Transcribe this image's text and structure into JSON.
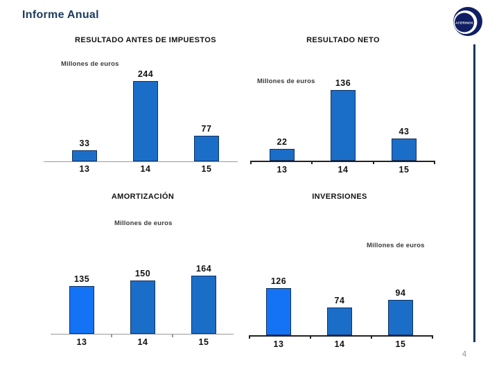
{
  "page": {
    "title": "Informe Anual",
    "page_number": "4"
  },
  "logo": {
    "text": "ACERINOX"
  },
  "colors": {
    "bar_fill": "#1b6ec8",
    "bar_highlight": "#1473f5",
    "bar_border": "#10305f",
    "title_text": "#1c3a5c",
    "accent_line": "#16355c"
  },
  "chart_data": [
    {
      "type": "bar",
      "title": "RESULTADO ANTES DE IMPUESTOS",
      "unit_label": "Millones de euros",
      "categories": [
        "13",
        "14",
        "15"
      ],
      "values": [
        33,
        244,
        77
      ],
      "bar_colors": [
        "#1b6ec8",
        "#1b6ec8",
        "#1b6ec8"
      ],
      "data_labels": true,
      "grid": false,
      "legend": false
    },
    {
      "type": "bar",
      "title": "RESULTADO NETO",
      "unit_label": "Millones de euros",
      "categories": [
        "13",
        "14",
        "15"
      ],
      "values": [
        22,
        136,
        43
      ],
      "bar_colors": [
        "#1b6ec8",
        "#1b6ec8",
        "#1b6ec8"
      ],
      "data_labels": true,
      "grid": false,
      "legend": false
    },
    {
      "type": "bar",
      "title": "AMORTIZACIÓN",
      "unit_label": "Millones de euros",
      "categories": [
        "13",
        "14",
        "15"
      ],
      "values": [
        135,
        150,
        164
      ],
      "bar_colors": [
        "#1473f5",
        "#1b6ec8",
        "#1b6ec8"
      ],
      "data_labels": true,
      "grid": false,
      "legend": false
    },
    {
      "type": "bar",
      "title": "INVERSIONES",
      "unit_label": "Millones de euros",
      "categories": [
        "13",
        "14",
        "15"
      ],
      "values": [
        126,
        74,
        94
      ],
      "bar_colors": [
        "#1473f5",
        "#1b6ec8",
        "#1b6ec8"
      ],
      "data_labels": true,
      "grid": false,
      "legend": false
    }
  ]
}
